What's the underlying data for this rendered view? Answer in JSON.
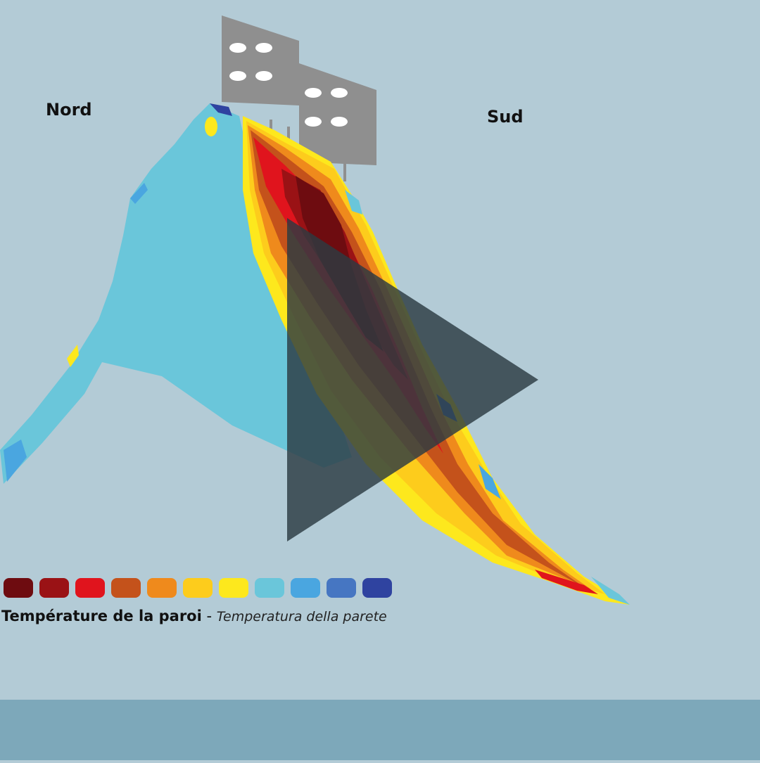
{
  "labels": {
    "north": "Nord",
    "south": "Sud"
  },
  "legend": {
    "title_fr": "Température de la paroi",
    "separator": " - ",
    "title_it": "Temperatura della parete",
    "swatches": [
      "#6e0c10",
      "#9a1215",
      "#e0141d",
      "#c4521b",
      "#ef8a1c",
      "#fdcc1c",
      "#fde81d",
      "#6ac6da",
      "#4aa6e0",
      "#4676c2",
      "#2f43a0"
    ]
  },
  "colors": {
    "background": "#b3cbd6",
    "bottom_bar": "#7da8ba",
    "building": "#8f8f8f",
    "cold_area": "#6ac6da",
    "play_overlay": "#2c3a42"
  },
  "icons": {
    "play": "play-triangle-icon",
    "building": "building-icon"
  }
}
